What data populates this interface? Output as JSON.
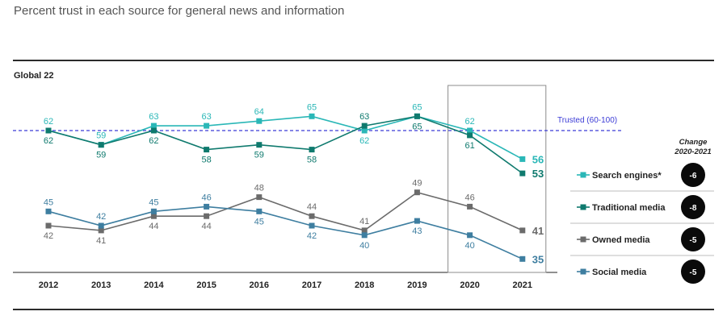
{
  "chart_data": {
    "type": "line",
    "title": "Percent trust in each source for general news and information",
    "subtitle": "Global 22",
    "categories": [
      "2012",
      "2013",
      "2014",
      "2015",
      "2016",
      "2017",
      "2018",
      "2019",
      "2020",
      "2021"
    ],
    "ylim": [
      30,
      70
    ],
    "grid": false,
    "legend_placement": "right",
    "highlight_categories": [
      "2020",
      "2021"
    ],
    "reference_line": {
      "value": 62,
      "label": "Trusted (60-100)",
      "color": "#3b3bd6"
    },
    "series": [
      {
        "name": "Search engines*",
        "color": "#2ab7b7",
        "values": [
          62,
          59,
          63,
          63,
          64,
          65,
          62,
          65,
          62,
          56
        ],
        "label_pos": [
          "above",
          "above",
          "above",
          "above",
          "above",
          "above",
          "below",
          "above",
          "above",
          "right"
        ],
        "change": "-6"
      },
      {
        "name": "Traditional media",
        "color": "#0f7a6e",
        "values": [
          62,
          59,
          62,
          58,
          59,
          58,
          63,
          65,
          61,
          53
        ],
        "label_pos": [
          "below",
          "below",
          "below",
          "below",
          "below",
          "below",
          "above",
          "below",
          "below",
          "right"
        ],
        "change": "-8"
      },
      {
        "name": "Owned media",
        "color": "#6b6b6b",
        "values": [
          42,
          41,
          44,
          44,
          48,
          44,
          41,
          49,
          46,
          41
        ],
        "label_pos": [
          "below",
          "below",
          "below",
          "below",
          "above",
          "above",
          "above",
          "above",
          "above",
          "right"
        ],
        "change": "-5"
      },
      {
        "name": "Social media",
        "color": "#3e7ea0",
        "values": [
          45,
          42,
          45,
          46,
          45,
          42,
          40,
          43,
          40,
          35
        ],
        "label_pos": [
          "above",
          "above",
          "above",
          "above",
          "below",
          "below",
          "below",
          "below",
          "below",
          "right"
        ],
        "change": "-5"
      }
    ],
    "change_header": [
      "Change",
      "2020-2021"
    ]
  }
}
